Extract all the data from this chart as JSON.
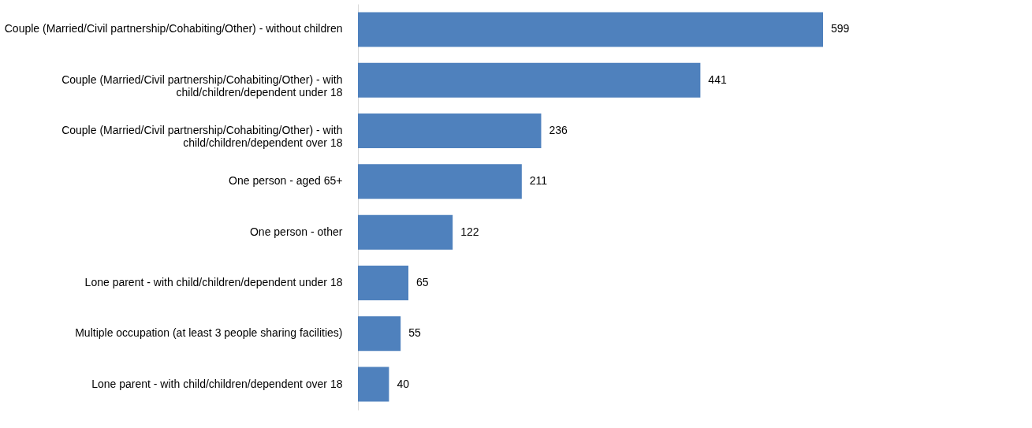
{
  "chart_data": {
    "type": "bar",
    "orientation": "horizontal",
    "categories": [
      "Couple (Married/Civil partnership/Cohabiting/Other) - without children",
      "Couple (Married/Civil partnership/Cohabiting/Other) - with child/children/dependent under 18",
      "Couple (Married/Civil partnership/Cohabiting/Other) - with child/children/dependent over 18",
      "One person - aged 65+",
      "One person - other",
      "Lone parent - with child/children/dependent under 18",
      "Multiple occupation (at least 3 people sharing facilities)",
      "Lone parent - with child/children/dependent over 18"
    ],
    "values": [
      599,
      441,
      236,
      211,
      122,
      65,
      55,
      40
    ],
    "color": "#4f81bd",
    "data_labels": true
  }
}
